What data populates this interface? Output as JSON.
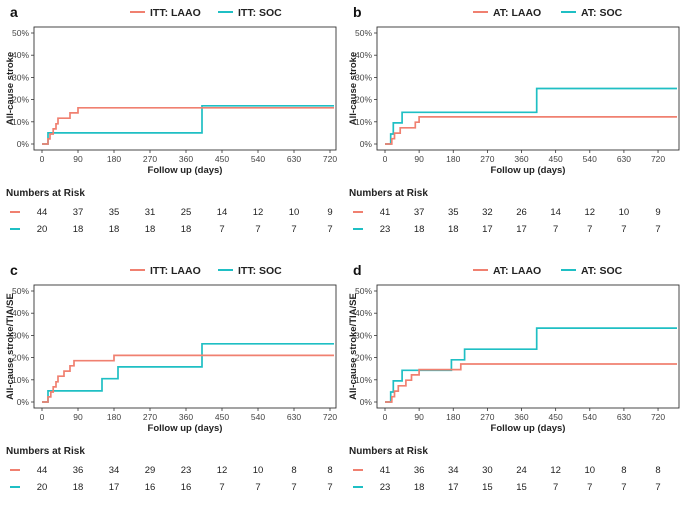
{
  "colors": {
    "laao": "#f08070",
    "soc": "#1fbfc4",
    "axis": "#333333",
    "text": "#222222"
  },
  "chart_data": [
    {
      "panel_label": "a",
      "type": "line",
      "step": true,
      "legend": [
        "ITT: LAAO",
        "ITT: SOC"
      ],
      "legend_position": "top",
      "xlabel": "Follow up (days)",
      "ylabel": "All-cause stroke",
      "xlim": [
        0,
        730
      ],
      "ylim": [
        0,
        0.5
      ],
      "xticks": [
        "0",
        "90",
        "180",
        "270",
        "360",
        "450",
        "540",
        "630",
        "720"
      ],
      "yticks": [
        "0%",
        "10%",
        "20%",
        "30%",
        "40%",
        "50%"
      ],
      "series": [
        {
          "name": "ITT: LAAO",
          "x": [
            0,
            15,
            20,
            28,
            35,
            40,
            70,
            90,
            100,
            730
          ],
          "y": [
            0,
            0.023,
            0.045,
            0.068,
            0.091,
            0.116,
            0.14,
            0.163,
            0.163,
            0.163
          ]
        },
        {
          "name": "ITT: SOC",
          "x": [
            0,
            15,
            20,
            400,
            730
          ],
          "y": [
            0,
            0.05,
            0.05,
            0.172,
            0.172
          ]
        }
      ],
      "risk_table": {
        "title": "Numbers at Risk",
        "rows": [
          {
            "series": "ITT: LAAO",
            "values": [
              "44",
              "37",
              "35",
              "31",
              "25",
              "14",
              "12",
              "10",
              "9"
            ]
          },
          {
            "series": "ITT: SOC",
            "values": [
              "20",
              "18",
              "18",
              "18",
              "18",
              "7",
              "7",
              "7",
              "7"
            ]
          }
        ]
      }
    },
    {
      "panel_label": "b",
      "type": "line",
      "step": true,
      "legend": [
        "AT: LAAO",
        "AT: SOC"
      ],
      "legend_position": "top",
      "xlabel": "Follow up (days)",
      "ylabel": "All-cause stroke",
      "xlim": [
        0,
        770
      ],
      "ylim": [
        0,
        0.5
      ],
      "xticks": [
        "0",
        "90",
        "180",
        "270",
        "360",
        "450",
        "540",
        "630",
        "720"
      ],
      "yticks": [
        "0%",
        "10%",
        "20%",
        "30%",
        "40%",
        "50%"
      ],
      "series": [
        {
          "name": "AT: LAAO",
          "x": [
            0,
            18,
            25,
            40,
            80,
            90,
            770
          ],
          "y": [
            0,
            0.024,
            0.049,
            0.073,
            0.098,
            0.122,
            0.122
          ]
        },
        {
          "name": "AT: SOC",
          "x": [
            0,
            15,
            22,
            45,
            400,
            770
          ],
          "y": [
            0,
            0.045,
            0.095,
            0.143,
            0.25,
            0.25
          ]
        }
      ],
      "risk_table": {
        "title": "Numbers at Risk",
        "rows": [
          {
            "series": "AT: LAAO",
            "values": [
              "41",
              "37",
              "35",
              "32",
              "26",
              "14",
              "12",
              "10",
              "9"
            ]
          },
          {
            "series": "AT: SOC",
            "values": [
              "23",
              "18",
              "18",
              "17",
              "17",
              "7",
              "7",
              "7",
              "7"
            ]
          }
        ]
      }
    },
    {
      "panel_label": "c",
      "type": "line",
      "step": true,
      "legend": [
        "ITT: LAAO",
        "ITT: SOC"
      ],
      "legend_position": "top",
      "xlabel": "Follow up (days)",
      "ylabel": "All-cause stroke/TIA/SE",
      "xlim": [
        0,
        730
      ],
      "ylim": [
        0,
        0.5
      ],
      "xticks": [
        "0",
        "90",
        "180",
        "270",
        "360",
        "450",
        "540",
        "630",
        "720"
      ],
      "yticks": [
        "0%",
        "10%",
        "20%",
        "30%",
        "40%",
        "50%"
      ],
      "series": [
        {
          "name": "ITT: LAAO",
          "x": [
            0,
            15,
            22,
            28,
            35,
            40,
            55,
            70,
            80,
            90,
            180,
            730
          ],
          "y": [
            0,
            0.023,
            0.045,
            0.068,
            0.091,
            0.116,
            0.139,
            0.163,
            0.186,
            0.186,
            0.21,
            0.21
          ]
        },
        {
          "name": "ITT: SOC",
          "x": [
            0,
            15,
            150,
            190,
            400,
            730
          ],
          "y": [
            0,
            0.05,
            0.105,
            0.158,
            0.262,
            0.262
          ]
        }
      ],
      "risk_table": {
        "title": "Numbers at Risk",
        "rows": [
          {
            "series": "ITT: LAAO",
            "values": [
              "44",
              "36",
              "34",
              "29",
              "23",
              "12",
              "10",
              "8",
              "8"
            ]
          },
          {
            "series": "ITT: SOC",
            "values": [
              "20",
              "18",
              "17",
              "16",
              "16",
              "7",
              "7",
              "7",
              "7"
            ]
          }
        ]
      }
    },
    {
      "panel_label": "d",
      "type": "line",
      "step": true,
      "legend": [
        "AT: LAAO",
        "AT: SOC"
      ],
      "legend_position": "top",
      "xlabel": "Follow up (days)",
      "ylabel": "All-cause stroke/TIA/SE",
      "xlim": [
        0,
        770
      ],
      "ylim": [
        0,
        0.5
      ],
      "xticks": [
        "0",
        "90",
        "180",
        "270",
        "360",
        "450",
        "540",
        "630",
        "720"
      ],
      "yticks": [
        "0%",
        "10%",
        "20%",
        "30%",
        "40%",
        "50%"
      ],
      "series": [
        {
          "name": "AT: LAAO",
          "x": [
            0,
            18,
            25,
            35,
            55,
            70,
            80,
            90,
            150,
            185,
            200,
            770
          ],
          "y": [
            0,
            0.024,
            0.049,
            0.073,
            0.098,
            0.122,
            0.122,
            0.146,
            0.146,
            0.146,
            0.171,
            0.171
          ]
        },
        {
          "name": "AT: SOC",
          "x": [
            0,
            15,
            22,
            45,
            90,
            175,
            210,
            400,
            770
          ],
          "y": [
            0,
            0.045,
            0.095,
            0.143,
            0.143,
            0.19,
            0.238,
            0.333,
            0.333
          ]
        }
      ],
      "risk_table": {
        "title": "Numbers at Risk",
        "rows": [
          {
            "series": "AT: LAAO",
            "values": [
              "41",
              "36",
              "34",
              "30",
              "24",
              "12",
              "10",
              "8",
              "8"
            ]
          },
          {
            "series": "AT: SOC",
            "values": [
              "23",
              "18",
              "17",
              "15",
              "15",
              "7",
              "7",
              "7",
              "7"
            ]
          }
        ]
      }
    }
  ]
}
